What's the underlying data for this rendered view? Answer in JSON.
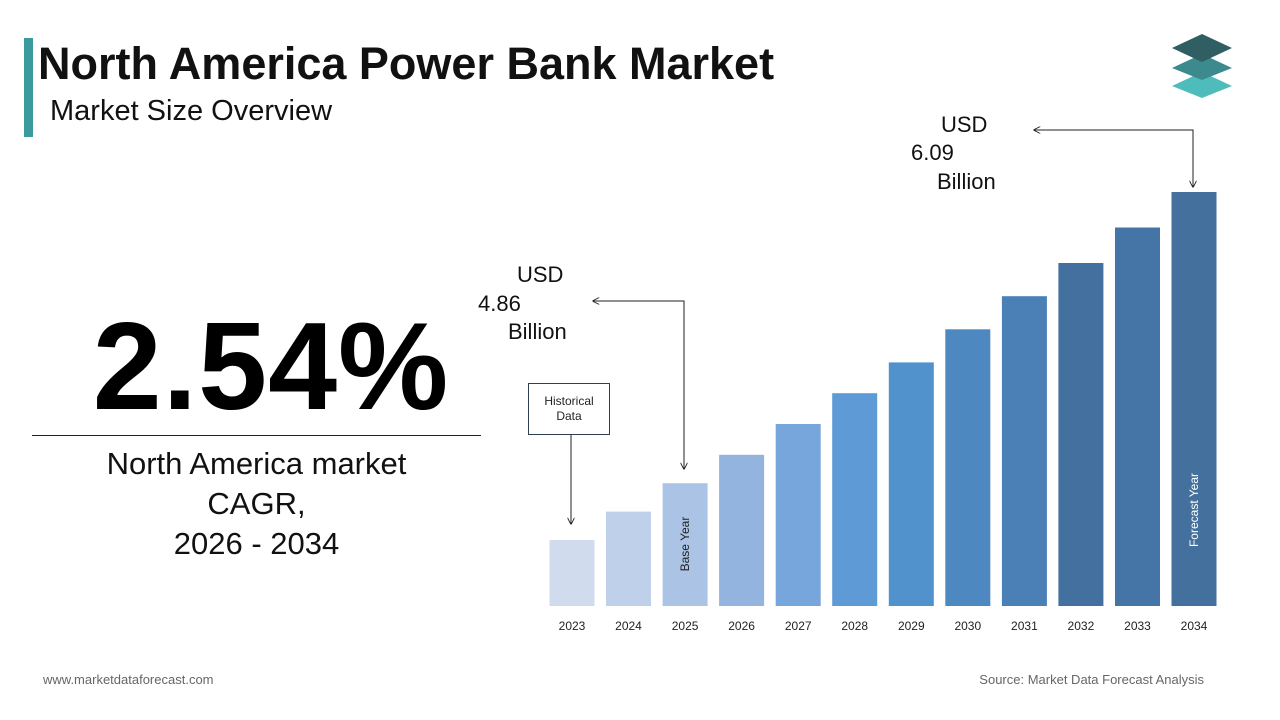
{
  "header": {
    "title": "North America Power Bank Market",
    "subtitle": "Market Size Overview",
    "accent_color": "#3b9a9c"
  },
  "logo": {
    "icon": "stacked-layers-icon",
    "colors": [
      "#2f5e63",
      "#3c8a8e",
      "#4fbcbc"
    ]
  },
  "cagr": {
    "value": "2.54%",
    "label_line1": "North America  market",
    "label_line2": "CAGR,",
    "label_line3": "2026 - 2034"
  },
  "callouts": {
    "base": {
      "currency": "USD",
      "value": "4.86",
      "unit": "Billion"
    },
    "forecast": {
      "currency": "USD",
      "value": "6.09",
      "unit": "Billion"
    },
    "historical": {
      "line1": "Historical",
      "line2": "Data"
    }
  },
  "chart_data": {
    "type": "bar",
    "categories": [
      "2023",
      "2024",
      "2025",
      "2026",
      "2027",
      "2028",
      "2029",
      "2030",
      "2031",
      "2032",
      "2033",
      "2034"
    ],
    "values": [
      4.62,
      4.74,
      4.86,
      4.98,
      5.11,
      5.24,
      5.37,
      5.51,
      5.65,
      5.79,
      5.94,
      6.09
    ],
    "bar_labels": {
      "2025": "Base Year",
      "2034": "Forecast Year"
    },
    "colors": [
      "#d0dcee",
      "#bfd0ea",
      "#abc4e6",
      "#93b4df",
      "#77a6dc",
      "#5e9ad6",
      "#5292cc",
      "#4d88c0",
      "#4a80b6",
      "#44709f",
      "#4575a6",
      "#44709e"
    ],
    "grid": false,
    "legend": "none"
  },
  "footer": {
    "website": "www.marketdataforecast.com",
    "source": "Source: Market Data Forecast Analysis"
  }
}
